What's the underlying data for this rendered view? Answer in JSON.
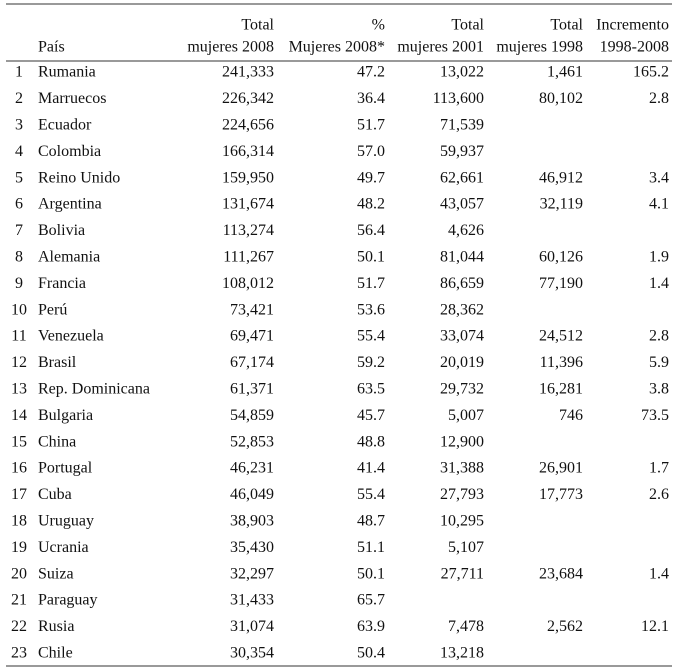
{
  "table": {
    "header": [
      null,
      [
        "País"
      ],
      [
        "Total",
        "mujeres 2008"
      ],
      [
        "%",
        "Mujeres 2008*"
      ],
      [
        "Total",
        "mujeres 2001"
      ],
      [
        "Total",
        "mujeres 1998"
      ],
      [
        "Incremento",
        "1998-2008"
      ]
    ],
    "rows": [
      [
        "1",
        "Rumania",
        "241,333",
        "47.2",
        "13,022",
        "1,461",
        "165.2"
      ],
      [
        "2",
        "Marruecos",
        "226,342",
        "36.4",
        "113,600",
        "80,102",
        "2.8"
      ],
      [
        "3",
        "Ecuador",
        "224,656",
        "51.7",
        "71,539",
        null,
        null
      ],
      [
        "4",
        "Colombia",
        "166,314",
        "57.0",
        "59,937",
        null,
        null
      ],
      [
        "5",
        "Reino Unido",
        "159,950",
        "49.7",
        "62,661",
        "46,912",
        "3.4"
      ],
      [
        "6",
        "Argentina",
        "131,674",
        "48.2",
        "43,057",
        "32,119",
        "4.1"
      ],
      [
        "7",
        "Bolivia",
        "113,274",
        "56.4",
        "4,626",
        null,
        null
      ],
      [
        "8",
        "Alemania",
        "111,267",
        "50.1",
        "81,044",
        "60,126",
        "1.9"
      ],
      [
        "9",
        "Francia",
        "108,012",
        "51.7",
        "86,659",
        "77,190",
        "1.4"
      ],
      [
        "10",
        "Perú",
        "73,421",
        "53.6",
        "28,362",
        null,
        null
      ],
      [
        "11",
        "Venezuela",
        "69,471",
        "55.4",
        "33,074",
        "24,512",
        "2.8"
      ],
      [
        "12",
        "Brasil",
        "67,174",
        "59.2",
        "20,019",
        "11,396",
        "5.9"
      ],
      [
        "13",
        "Rep. Dominicana",
        "61,371",
        "63.5",
        "29,732",
        "16,281",
        "3.8"
      ],
      [
        "14",
        "Bulgaria",
        "54,859",
        "45.7",
        "5,007",
        "746",
        "73.5"
      ],
      [
        "15",
        "China",
        "52,853",
        "48.8",
        "12,900",
        null,
        null
      ],
      [
        "16",
        "Portugal",
        "46,231",
        "41.4",
        "31,388",
        "26,901",
        "1.7"
      ],
      [
        "17",
        "Cuba",
        "46,049",
        "55.4",
        "27,793",
        "17,773",
        "2.6"
      ],
      [
        "18",
        "Uruguay",
        "38,903",
        "48.7",
        "10,295",
        null,
        null
      ],
      [
        "19",
        "Ucrania",
        "35,430",
        "51.1",
        "5,107",
        null,
        null
      ],
      [
        "20",
        "Suiza",
        "32,297",
        "50.1",
        "27,711",
        "23,684",
        "1.4"
      ],
      [
        "21",
        "Paraguay",
        "31,433",
        "65.7",
        null,
        null,
        null
      ],
      [
        "22",
        "Rusia",
        "31,074",
        "63.9",
        "7,478",
        "2,562",
        "12.1"
      ],
      [
        "23",
        "Chile",
        "30,354",
        "50.4",
        "13,218",
        null,
        null
      ]
    ]
  }
}
